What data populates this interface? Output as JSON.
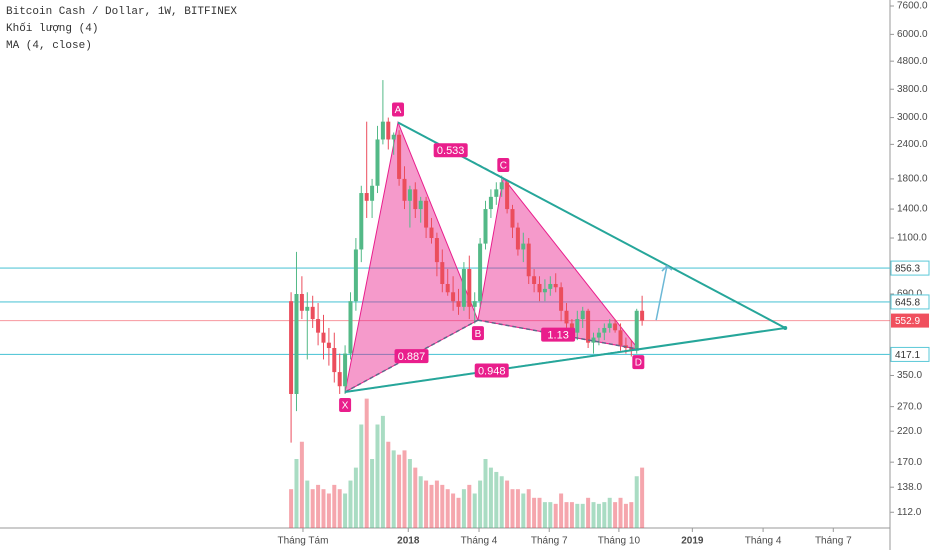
{
  "chart_data": {
    "type": "candlestick",
    "header": {
      "title": "Bitcoin Cash / Dollar, 1W, BITFINEX",
      "volume_label": "Khối lượng (4)",
      "ma_label": "MA (4, close)"
    },
    "log_scale": true,
    "colors": {
      "up": "#53b987",
      "down": "#eb4d5c",
      "pattern": "#e91e8c",
      "triangle": "#26a69a",
      "level": "#5ac8d8",
      "price": "#f0505e"
    },
    "x": [
      0,
      1,
      2,
      3,
      4,
      5,
      6,
      7,
      8,
      9,
      10,
      11,
      12,
      13,
      14,
      15,
      16,
      17,
      18,
      19,
      20,
      21,
      22,
      23,
      24,
      25,
      26,
      27,
      28,
      29,
      30,
      31,
      32,
      33,
      34,
      35,
      36,
      37,
      38,
      39,
      40,
      41,
      42,
      43,
      44,
      45,
      46,
      47,
      48,
      49,
      50,
      51,
      52,
      53,
      54,
      55,
      56,
      57,
      58,
      59,
      60,
      61,
      62,
      63,
      64,
      65
    ],
    "open": [
      650,
      300,
      690,
      600,
      620,
      560,
      500,
      460,
      440,
      360,
      320,
      420,
      650,
      1000,
      1600,
      1500,
      1700,
      2500,
      2900,
      2500,
      2600,
      1800,
      1500,
      1650,
      1400,
      1500,
      1200,
      1100,
      900,
      750,
      700,
      650,
      620,
      850,
      620,
      650,
      1050,
      1400,
      1550,
      1650,
      1750,
      1400,
      1200,
      1000,
      1050,
      800,
      750,
      700,
      720,
      750,
      730,
      600,
      540,
      500,
      560,
      600,
      460,
      480,
      500,
      520,
      540,
      510,
      450,
      440,
      430,
      600
    ],
    "high": [
      700,
      980,
      800,
      700,
      680,
      640,
      580,
      520,
      500,
      420,
      450,
      700,
      1100,
      1700,
      2900,
      1800,
      2800,
      4100,
      3000,
      2650,
      2700,
      2000,
      1700,
      1750,
      1550,
      1550,
      1300,
      1150,
      1000,
      850,
      800,
      720,
      900,
      950,
      700,
      1100,
      1500,
      1650,
      1750,
      1850,
      1780,
      1450,
      1250,
      1150,
      1100,
      850,
      800,
      780,
      800,
      820,
      760,
      640,
      560,
      600,
      620,
      610,
      500,
      520,
      540,
      560,
      560,
      540,
      480,
      470,
      610,
      680
    ],
    "low": [
      200,
      260,
      560,
      400,
      520,
      450,
      400,
      380,
      330,
      300,
      300,
      400,
      600,
      900,
      1300,
      1300,
      1600,
      2400,
      2300,
      2200,
      1700,
      1400,
      1200,
      1300,
      1250,
      1100,
      1050,
      800,
      700,
      680,
      600,
      580,
      600,
      560,
      540,
      620,
      1000,
      1300,
      1450,
      1550,
      1350,
      1100,
      950,
      900,
      750,
      700,
      650,
      650,
      680,
      700,
      550,
      520,
      480,
      470,
      520,
      440,
      420,
      450,
      470,
      500,
      500,
      430,
      420,
      410,
      420,
      530
    ],
    "close": [
      300,
      690,
      600,
      620,
      560,
      500,
      460,
      440,
      360,
      320,
      420,
      650,
      1000,
      1600,
      1500,
      1700,
      2500,
      2900,
      2500,
      2600,
      1800,
      1500,
      1650,
      1400,
      1500,
      1200,
      1100,
      900,
      750,
      700,
      650,
      620,
      850,
      620,
      650,
      1050,
      1400,
      1550,
      1650,
      1750,
      1400,
      1200,
      1000,
      1050,
      800,
      750,
      700,
      720,
      750,
      730,
      600,
      540,
      500,
      560,
      600,
      460,
      480,
      500,
      520,
      540,
      510,
      450,
      440,
      430,
      600,
      552.9
    ],
    "volume": [
      45,
      80,
      100,
      55,
      45,
      50,
      45,
      40,
      50,
      45,
      40,
      55,
      70,
      120,
      150,
      80,
      120,
      130,
      100,
      90,
      85,
      90,
      80,
      70,
      60,
      55,
      50,
      55,
      50,
      45,
      40,
      35,
      45,
      50,
      40,
      55,
      80,
      70,
      65,
      60,
      55,
      45,
      45,
      40,
      45,
      35,
      35,
      30,
      30,
      28,
      40,
      30,
      30,
      28,
      28,
      35,
      30,
      28,
      30,
      35,
      30,
      35,
      28,
      30,
      60,
      70
    ],
    "volume_lim": [
      0,
      160
    ],
    "xlim": [
      -53.9,
      110.9
    ],
    "xticks": [
      {
        "value": 2.2,
        "label": "Tháng Tám"
      },
      {
        "value": 21.7,
        "label": "2018"
      },
      {
        "value": 34.8,
        "label": "Tháng 4"
      },
      {
        "value": 47.8,
        "label": "Tháng 7"
      },
      {
        "value": 60.7,
        "label": "Tháng 10"
      },
      {
        "value": 74.3,
        "label": "2019"
      },
      {
        "value": 87.4,
        "label": "Tháng 4"
      },
      {
        "value": 100.4,
        "label": "Tháng 7"
      }
    ],
    "ylim": [
      105,
      7990
    ],
    "yticks": [
      {
        "value": 7600,
        "label": "7600.0"
      },
      {
        "value": 6000,
        "label": "6000.0"
      },
      {
        "value": 4800,
        "label": "4800.0"
      },
      {
        "value": 3800,
        "label": "3800.0"
      },
      {
        "value": 3000,
        "label": "3000.0"
      },
      {
        "value": 2400,
        "label": "2400.0"
      },
      {
        "value": 1800,
        "label": "1800.0"
      },
      {
        "value": 1400,
        "label": "1400.0"
      },
      {
        "value": 1100,
        "label": "1100.0"
      },
      {
        "value": 690,
        "label": "690.0"
      },
      {
        "value": 350,
        "label": "350.0"
      },
      {
        "value": 270,
        "label": "270.0"
      },
      {
        "value": 220,
        "label": "220.0"
      },
      {
        "value": 170,
        "label": "170.0"
      },
      {
        "value": 138,
        "label": "138.0"
      },
      {
        "value": 112,
        "label": "112.0"
      }
    ],
    "levels": [
      856.3,
      645.8,
      417.1
    ],
    "last_price": 552.9,
    "pattern": {
      "points": [
        {
          "label": "X",
          "x": 10,
          "y": 305
        },
        {
          "label": "A",
          "x": 19.8,
          "y": 2880
        },
        {
          "label": "B",
          "x": 34.6,
          "y": 555
        },
        {
          "label": "C",
          "x": 39.3,
          "y": 1813
        },
        {
          "label": "D",
          "x": 64.3,
          "y": 436
        }
      ],
      "ratios": [
        "0.533",
        "0.887",
        "1.13",
        "0.948"
      ]
    },
    "apex": {
      "x": 91.5,
      "y": 520
    },
    "projection": {
      "x": [
        67.6,
        69.6
      ],
      "y": [
        555,
        871
      ]
    }
  }
}
